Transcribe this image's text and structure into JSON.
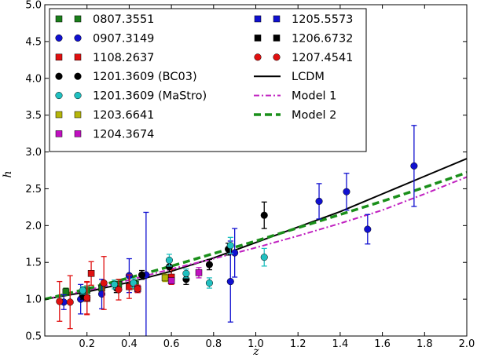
{
  "chart_data": {
    "type": "scatter",
    "xlabel": "z",
    "ylabel": "h",
    "xlim": [
      0.0,
      2.0
    ],
    "ylim": [
      0.5,
      5.0
    ],
    "xticks": [
      0.2,
      0.4,
      0.6,
      0.8,
      1.0,
      1.2,
      1.4,
      1.6,
      1.8,
      2.0
    ],
    "xtick_labels": [
      "0.2",
      "0.4",
      "0.6",
      "0.8",
      "1.0",
      "1.2",
      "1.4",
      "1.6",
      "1.8",
      "2.0"
    ],
    "yticks": [
      0.5,
      1.0,
      1.5,
      2.0,
      2.5,
      3.0,
      3.5,
      4.0,
      4.5,
      5.0
    ],
    "ytick_labels": [
      "0.5",
      "1.0",
      "1.5",
      "2.0",
      "2.5",
      "3.0",
      "3.5",
      "4.0",
      "4.5",
      "5.0"
    ],
    "legend_position": "top-left",
    "series": [
      {
        "name": "0807.3551",
        "marker": "square",
        "color": "#1a7f1a",
        "points": [
          [
            0.1,
            1.1,
            0.05
          ],
          [
            0.2,
            1.12,
            0.06
          ],
          [
            0.27,
            1.15,
            0.06
          ],
          [
            0.35,
            1.2,
            0.06
          ],
          [
            0.43,
            1.2,
            0.06
          ]
        ]
      },
      {
        "name": "0907.3149",
        "marker": "circle",
        "color": "#1010d0",
        "points": [
          [
            0.09,
            0.96,
            0.1
          ],
          [
            0.17,
            1.0,
            0.2
          ],
          [
            0.27,
            1.07,
            0.2
          ],
          [
            0.4,
            1.32,
            0.23
          ],
          [
            0.48,
            1.33,
            0.85
          ],
          [
            0.88,
            1.24,
            0.55
          ],
          [
            0.9,
            1.63,
            0.33
          ],
          [
            1.3,
            2.33,
            0.24
          ],
          [
            1.43,
            2.46,
            0.25
          ],
          [
            1.53,
            1.95,
            0.2
          ],
          [
            1.75,
            2.81,
            0.55
          ]
        ]
      },
      {
        "name": "1108.2637",
        "marker": "square",
        "color": "#e01010",
        "points": [
          [
            0.2,
            1.01,
            0.22
          ],
          [
            0.22,
            1.35,
            0.16
          ],
          [
            0.4,
            1.17,
            0.16
          ],
          [
            0.6,
            1.3,
            0.1
          ]
        ]
      },
      {
        "name": "1201.3609 (BC03)",
        "marker": "circle",
        "color": "#000000",
        "points": [
          [
            0.18,
            1.05,
            0.05
          ],
          [
            0.34,
            1.15,
            0.06
          ],
          [
            0.46,
            1.33,
            0.06
          ],
          [
            0.59,
            1.44,
            0.07
          ],
          [
            0.67,
            1.27,
            0.07
          ],
          [
            0.78,
            1.47,
            0.07
          ],
          [
            0.87,
            1.68,
            0.08
          ],
          [
            1.04,
            2.14,
            0.18
          ]
        ]
      },
      {
        "name": "1201.3609 (MaStro)",
        "marker": "circle",
        "color": "#20c0c0",
        "points": [
          [
            0.18,
            1.12,
            0.05
          ],
          [
            0.33,
            1.2,
            0.06
          ],
          [
            0.42,
            1.22,
            0.06
          ],
          [
            0.59,
            1.53,
            0.08
          ],
          [
            0.67,
            1.35,
            0.06
          ],
          [
            0.78,
            1.22,
            0.07
          ],
          [
            0.88,
            1.73,
            0.11
          ],
          [
            1.04,
            1.57,
            0.12
          ]
        ]
      },
      {
        "name": "1203.6641",
        "marker": "square",
        "color": "#b5b50a",
        "points": [
          [
            0.57,
            1.29,
            0.05
          ]
        ]
      },
      {
        "name": "1204.3674",
        "marker": "square",
        "color": "#c010c0",
        "points": [
          [
            0.44,
            1.14,
            0.05
          ],
          [
            0.6,
            1.25,
            0.04
          ],
          [
            0.73,
            1.36,
            0.07
          ]
        ]
      },
      {
        "name": "1205.5573",
        "marker": "square",
        "color": "#1010d0",
        "points": []
      },
      {
        "name": "1206.6732",
        "marker": "square",
        "color": "#000000",
        "points": []
      },
      {
        "name": "1207.4541",
        "marker": "circle",
        "color": "#e01010",
        "points": [
          [
            0.07,
            0.97,
            0.27
          ],
          [
            0.12,
            0.96,
            0.36
          ],
          [
            0.2,
            1.02,
            0.22
          ],
          [
            0.28,
            1.22,
            0.36
          ],
          [
            0.35,
            1.13,
            0.14
          ],
          [
            0.44,
            1.14,
            0.05
          ]
        ]
      }
    ],
    "curves": [
      {
        "name": "LCDM",
        "style": "solid",
        "color": "#000000",
        "x": [
          0.0,
          0.2,
          0.4,
          0.6,
          0.8,
          1.0,
          1.2,
          1.4,
          1.6,
          1.8,
          2.0
        ],
        "y": [
          1.0,
          1.1,
          1.23,
          1.38,
          1.56,
          1.77,
          1.98,
          2.19,
          2.43,
          2.67,
          2.91
        ]
      },
      {
        "name": "Model 1",
        "style": "dashdot",
        "color": "#c020c0",
        "x": [
          0.0,
          0.2,
          0.4,
          0.6,
          0.8,
          1.0,
          1.2,
          1.4,
          1.6,
          1.8,
          2.0
        ],
        "y": [
          1.0,
          1.12,
          1.26,
          1.41,
          1.55,
          1.7,
          1.86,
          2.03,
          2.21,
          2.43,
          2.66
        ]
      },
      {
        "name": "Model 2",
        "style": "dashed",
        "color": "#1a8f1a",
        "x": [
          0.0,
          0.2,
          0.4,
          0.6,
          0.8,
          1.0,
          1.2,
          1.4,
          1.6,
          1.8,
          2.0
        ],
        "y": [
          1.0,
          1.14,
          1.29,
          1.45,
          1.62,
          1.79,
          1.97,
          2.15,
          2.33,
          2.52,
          2.72
        ]
      }
    ],
    "legend_columns": [
      [
        "0807.3551",
        "0907.3149",
        "1108.2637",
        "1201.3609 (BC03)",
        "1201.3609 (MaStro)",
        "1203.6641",
        "1204.3674"
      ],
      [
        "1205.5573",
        "1206.6732",
        "1207.4541",
        "LCDM",
        "Model 1",
        "Model 2"
      ]
    ]
  }
}
